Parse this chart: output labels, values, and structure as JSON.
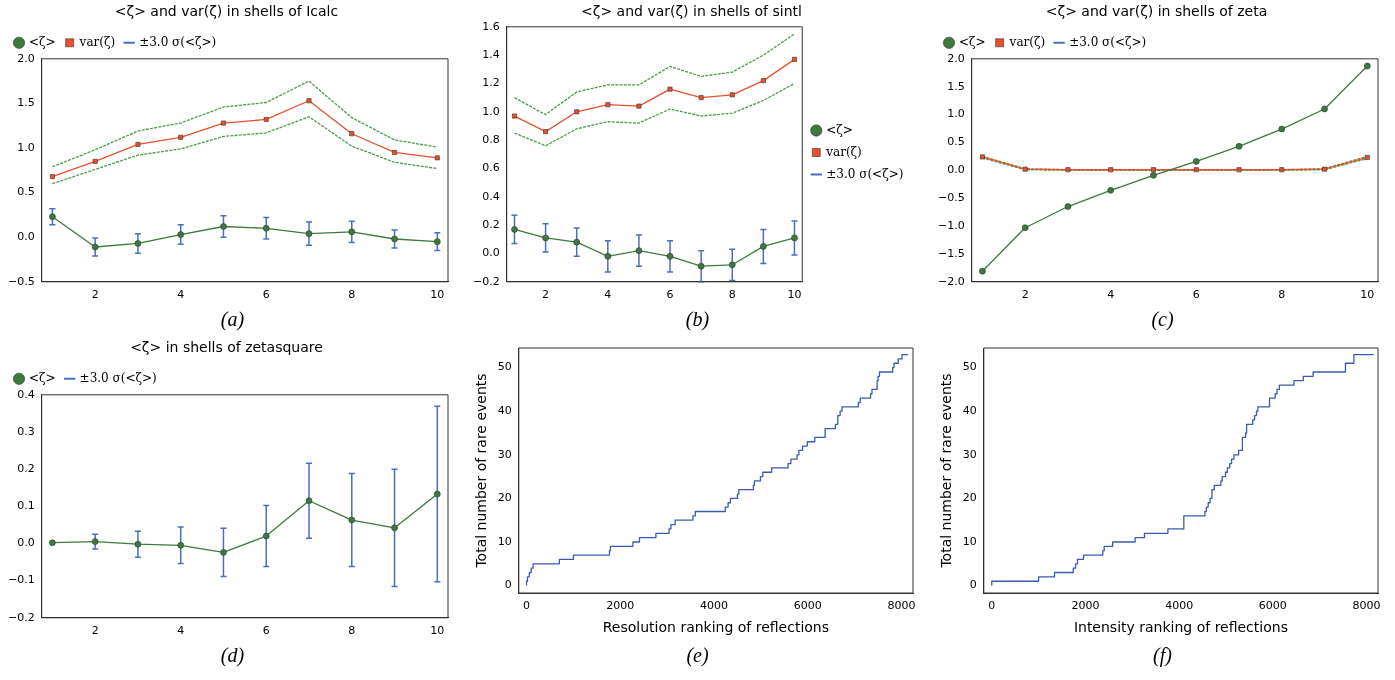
{
  "chart_data": [
    {
      "type": "line",
      "title": "<ζ> and var(ζ) in shells of Icalc",
      "x": [
        1,
        2,
        3,
        4,
        5,
        6,
        7,
        8,
        9,
        10
      ],
      "xlim": [
        0.75,
        10.25
      ],
      "xticks": [
        2,
        4,
        6,
        8,
        10
      ],
      "ylim": [
        -0.5,
        2
      ],
      "yticks": [
        {
          "value": -0.5,
          "label": "−0.5"
        },
        {
          "value": 0,
          "label": "0.0"
        },
        0.5,
        {
          "value": 1,
          "label": "1.0"
        },
        1.5,
        {
          "value": 2,
          "label": "2.0"
        }
      ],
      "legend": "top left",
      "annotations": [
        "(a)",
        "±3.0 σ(<ζ>)"
      ],
      "series": [
        {
          "name": "<ζ>",
          "color": "#3d7a3d",
          "marker": "circle",
          "values": [
            0.23,
            -0.11,
            -0.07,
            0.03,
            0.12,
            0.1,
            0.04,
            0.06,
            -0.02,
            -0.05
          ],
          "errors": [
            0.09,
            0.1,
            0.11,
            0.11,
            0.12,
            0.12,
            0.13,
            0.12,
            0.1,
            0.1
          ]
        },
        {
          "name": "var(ζ)",
          "color": "#e8502e",
          "marker": "square",
          "values": [
            0.68,
            0.85,
            1.04,
            1.12,
            1.28,
            1.32,
            1.53,
            1.16,
            0.95,
            0.89
          ]
        },
        {
          "color": "#4c9a4c",
          "marker": "none",
          "line_style": "dashed",
          "values": [
            0.79,
            0.98,
            1.19,
            1.28,
            1.46,
            1.51,
            1.75,
            1.34,
            1.09,
            1.01
          ]
        },
        {
          "color": "#4c9a4c",
          "marker": "none",
          "line_style": "dashed",
          "values": [
            0.6,
            0.76,
            0.92,
            0.99,
            1.13,
            1.17,
            1.35,
            1.02,
            0.84,
            0.77
          ]
        }
      ]
    },
    {
      "type": "line",
      "title": "<ζ> and var(ζ) in shells of sintl",
      "x": [
        1,
        2,
        3,
        4,
        5,
        6,
        7,
        8,
        9,
        10
      ],
      "xlim": [
        0.75,
        10.25
      ],
      "xticks": [
        2,
        4,
        6,
        8,
        10
      ],
      "ylim": [
        -0.2,
        1.6
      ],
      "yticks": [
        {
          "value": -0.2,
          "label": "−0.2"
        },
        {
          "value": 0,
          "label": "0.0"
        },
        0.2,
        0.4,
        0.6,
        0.8,
        {
          "value": 1,
          "label": "1.0"
        },
        1.2,
        1.4,
        1.6
      ],
      "legend": "center right",
      "annotations": [
        "(b)",
        "±3.0 σ(<ζ>)"
      ],
      "series": [
        {
          "name": "<ζ>",
          "color": "#3d7a3d",
          "marker": "circle",
          "values": [
            0.17,
            0.11,
            0.08,
            -0.02,
            0.02,
            -0.02,
            -0.09,
            -0.08,
            0.05,
            0.11
          ],
          "errors": [
            0.1,
            0.1,
            0.1,
            0.11,
            0.11,
            0.11,
            0.11,
            0.11,
            0.12,
            0.12
          ]
        },
        {
          "name": "var(ζ)",
          "color": "#e8502e",
          "marker": "square",
          "values": [
            0.97,
            0.86,
            1.0,
            1.05,
            1.04,
            1.16,
            1.1,
            1.12,
            1.22,
            1.37
          ]
        },
        {
          "color": "#4c9a4c",
          "marker": "none",
          "line_style": "dashed",
          "values": [
            1.1,
            0.98,
            1.14,
            1.19,
            1.19,
            1.32,
            1.25,
            1.28,
            1.4,
            1.55
          ]
        },
        {
          "color": "#4c9a4c",
          "marker": "none",
          "line_style": "dashed",
          "values": [
            0.85,
            0.76,
            0.88,
            0.93,
            0.92,
            1.02,
            0.97,
            0.99,
            1.08,
            1.2
          ]
        }
      ]
    },
    {
      "type": "line",
      "title": "<ζ> and var(ζ) in shells of zeta",
      "x": [
        1,
        2,
        3,
        4,
        5,
        6,
        7,
        8,
        9,
        10
      ],
      "xlim": [
        0.75,
        10.25
      ],
      "xticks": [
        2,
        4,
        6,
        8,
        10
      ],
      "ylim": [
        -2,
        2
      ],
      "yticks": [
        {
          "value": -2,
          "label": "−2.0"
        },
        {
          "value": -1.5,
          "label": "−1.5"
        },
        {
          "value": -1,
          "label": "−1.0"
        },
        {
          "value": -0.5,
          "label": "−0.5"
        },
        {
          "value": 0,
          "label": "0.0"
        },
        0.5,
        {
          "value": 1,
          "label": "1.0"
        },
        1.5,
        {
          "value": 2,
          "label": "2.0"
        }
      ],
      "legend": "top left",
      "annotations": [
        "(c)",
        "±3.0 σ(<ζ>)"
      ],
      "series": [
        {
          "name": "<ζ>",
          "color": "#3d7a3d",
          "marker": "circle",
          "values": [
            -1.81,
            -1.03,
            -0.65,
            -0.36,
            -0.09,
            0.16,
            0.43,
            0.74,
            1.1,
            1.87
          ]
        },
        {
          "name": "var(ζ)",
          "color": "#e8502e",
          "marker": "square",
          "values": [
            0.24,
            0.02,
            0.01,
            0.01,
            0.01,
            0.01,
            0.01,
            0.01,
            0.02,
            0.23
          ]
        },
        {
          "color": "#4c9a4c",
          "marker": "none",
          "line_style": "dashed",
          "values": [
            0.25,
            0.03,
            0.01,
            0.01,
            0.01,
            0.01,
            0.01,
            0.01,
            0.03,
            0.25
          ]
        },
        {
          "color": "#4c9a4c",
          "marker": "none",
          "line_style": "dashed",
          "values": [
            0.22,
            0.01,
            0,
            0,
            0,
            0,
            0,
            0,
            0.01,
            0.21
          ]
        }
      ]
    },
    {
      "type": "line",
      "title": "<ζ> in shells of zetasquare",
      "x": [
        1,
        2,
        3,
        4,
        5,
        6,
        7,
        8,
        9,
        10
      ],
      "xlim": [
        0.75,
        10.25
      ],
      "xticks": [
        2,
        4,
        6,
        8,
        10
      ],
      "ylim": [
        -0.2,
        0.4
      ],
      "yticks": [
        {
          "value": -0.2,
          "label": "−0.2"
        },
        {
          "value": -0.1,
          "label": "−0.1"
        },
        {
          "value": 0,
          "label": "0.0"
        },
        0.1,
        0.2,
        0.3,
        0.4
      ],
      "legend": "top left",
      "annotations": [
        "(d)",
        "±3.0 σ(<ζ>)"
      ],
      "series": [
        {
          "name": "<ζ>",
          "color": "#3d7a3d",
          "marker": "circle",
          "values": [
            0.002,
            0.005,
            -0.002,
            -0.005,
            -0.024,
            0.02,
            0.115,
            0.063,
            0.042,
            0.133
          ],
          "errors": [
            null,
            0.02,
            0.035,
            0.049,
            0.065,
            0.082,
            0.101,
            0.125,
            0.158,
            0.236
          ]
        }
      ]
    },
    {
      "type": "step",
      "xlabel": "Resolution ranking of reflections",
      "ylabel": "Total number of rare events",
      "xlim": [
        -165,
        8245
      ],
      "xticks": [
        0,
        2000,
        4000,
        6000,
        8000
      ],
      "ylim": [
        -1.7,
        54.5
      ],
      "yticks": [
        0,
        10,
        20,
        30,
        40,
        50
      ],
      "annotations": [
        "(e)"
      ],
      "color": "#3a5bb0",
      "x": [
        0,
        20,
        60,
        100,
        140,
        700,
        1000,
        1770,
        1790,
        2270,
        2410,
        2760,
        3040,
        3080,
        3170,
        3550,
        3600,
        4240,
        4300,
        4350,
        4500,
        4530,
        4840,
        4860,
        4990,
        5040,
        5230,
        5580,
        5640,
        5770,
        5810,
        5890,
        5990,
        6150,
        6370,
        6590,
        6640,
        6690,
        6730,
        7080,
        7120,
        7340,
        7370,
        7480,
        7500,
        7530,
        7810,
        7840,
        7930,
        8010,
        8040,
        8140
      ],
      "values": [
        0,
        1,
        2,
        3,
        4,
        5,
        6,
        7,
        8,
        9,
        10,
        11,
        12,
        13,
        14,
        15,
        16,
        17,
        18,
        19,
        20,
        21,
        22,
        23,
        24,
        25,
        26,
        27,
        28,
        29,
        30,
        31,
        32,
        33,
        34,
        36,
        37,
        39,
        40,
        41,
        42,
        43,
        44,
        45,
        47,
        48,
        49,
        50,
        51,
        52,
        53,
        53
      ]
    },
    {
      "type": "step",
      "xlabel": "Intensity ranking of reflections",
      "ylabel": "Total number of rare events",
      "xlim": [
        -170,
        8245
      ],
      "xticks": [
        0,
        2000,
        4000,
        6000,
        8000
      ],
      "ylim": [
        -1.7,
        54.5
      ],
      "yticks": [
        0,
        10,
        20,
        30,
        40,
        50
      ],
      "annotations": [
        "(f)"
      ],
      "color": "#3a5bb0",
      "x": [
        0,
        1000,
        1340,
        1740,
        1790,
        1830,
        1960,
        2370,
        2400,
        2580,
        3060,
        3260,
        3760,
        4100,
        4550,
        4580,
        4620,
        4660,
        4700,
        4750,
        4890,
        4920,
        4990,
        5030,
        5080,
        5120,
        5170,
        5270,
        5350,
        5420,
        5440,
        5570,
        5610,
        5650,
        5680,
        5930,
        6050,
        6090,
        6140,
        6450,
        6650,
        6860,
        7550,
        7730,
        8140,
        8150
      ],
      "values": [
        0,
        1,
        2,
        3,
        4,
        5,
        6,
        7,
        8,
        9,
        10,
        11,
        12,
        13,
        16,
        17,
        18,
        19,
        20,
        22,
        23,
        24,
        25,
        26,
        27,
        28,
        29,
        30,
        31,
        34,
        35,
        37,
        38,
        39,
        40,
        41,
        43,
        44,
        45,
        46,
        47,
        48,
        49,
        51,
        53,
        53
      ]
    }
  ]
}
